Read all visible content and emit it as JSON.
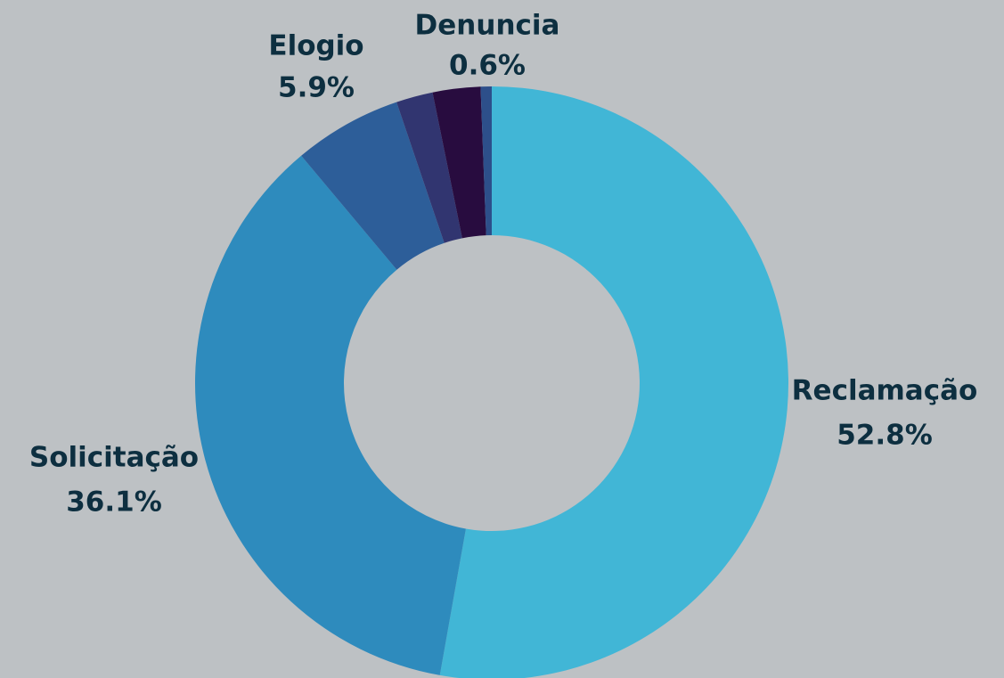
{
  "chart_data": {
    "type": "donut",
    "categories": [
      "Reclamação",
      "Solicitação",
      "Elogio",
      null,
      null,
      "Denuncia"
    ],
    "values": [
      52.8,
      36.1,
      5.9,
      2.0,
      2.6,
      0.6
    ],
    "value_labels": [
      "52.8%",
      "36.1%",
      "5.9%",
      null,
      null,
      "0.6%"
    ],
    "colors": [
      "#41b6d6",
      "#2e8bbd",
      "#2d5e99",
      "#313570",
      "#280c3f",
      "#2d4f8a"
    ]
  }
}
